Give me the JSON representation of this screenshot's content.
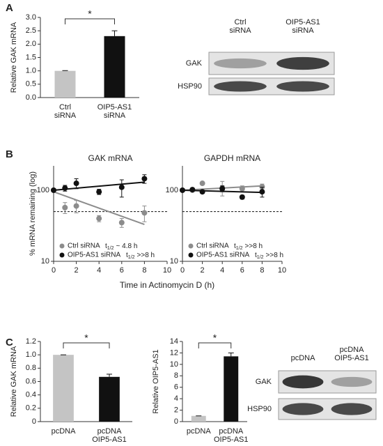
{
  "panels": [
    "A",
    "B",
    "C"
  ],
  "blots": [
    {
      "columns": [
        [
          "Ctrl",
          "siRNA"
        ],
        [
          "OIP5-AS1",
          "siRNA"
        ]
      ],
      "rows": [
        "GAK",
        "HSP90"
      ]
    },
    {
      "columns": [
        [
          "pcDNA"
        ],
        [
          "pcDNA",
          "OIP5-AS1"
        ]
      ],
      "rows": [
        "GAK",
        "HSP90"
      ]
    }
  ],
  "chart_data": [
    {
      "type": "bar",
      "ylabel": "Relative GAK mRNA",
      "categories": [
        [
          "Ctrl",
          "siRNA"
        ],
        [
          "OIP5-AS1",
          "siRNA"
        ]
      ],
      "values": [
        1.0,
        2.3
      ],
      "errors": [
        0.01,
        0.2
      ],
      "colors": [
        "#c4c4c4",
        "#111111"
      ],
      "ylim": [
        0,
        3
      ],
      "yticks": [
        {
          "value": 0,
          "label": "0.0"
        },
        0.5,
        {
          "value": 1,
          "label": "1.0"
        },
        1.5,
        {
          "value": 2,
          "label": "2.0"
        },
        2.5,
        {
          "value": 3,
          "label": "3.0"
        }
      ],
      "significance": "*"
    },
    {
      "type": "scatter",
      "title": "GAK mRNA",
      "ylabel": "% mRNA remaining (log)",
      "xlabel": "Time in Actinomycin D (h)",
      "log_y": true,
      "xlim": [
        0,
        10
      ],
      "xticks": [
        0,
        2,
        4,
        6,
        8,
        10
      ],
      "ylim": [
        10,
        220
      ],
      "yticks": [
        10,
        100
      ],
      "reference_line": 50,
      "half_life_symbol": "t",
      "half_life_subscript": "1/2",
      "series": [
        {
          "name": "Ctrl siRNA",
          "half_life": "~ 4.8 h",
          "color": "#8c8c8c",
          "x": [
            0,
            1,
            2,
            4,
            6,
            8
          ],
          "values": [
            100,
            57,
            60,
            40,
            35,
            48
          ],
          "errors": [
            0,
            10,
            12,
            4,
            5,
            12
          ],
          "fit": {
            "x": [
              0,
              8
            ],
            "values": [
              95,
              33
            ]
          }
        },
        {
          "name": "OIP5-AS1 siRNA",
          "half_life": ">>8 h",
          "color": "#111111",
          "x": [
            0,
            1,
            2,
            4,
            6,
            8
          ],
          "values": [
            100,
            107,
            125,
            95,
            110,
            145
          ],
          "errors": [
            0,
            10,
            20,
            8,
            30,
            20
          ],
          "fit": {
            "x": [
              0,
              8
            ],
            "values": [
              100,
              130
            ]
          }
        }
      ]
    },
    {
      "type": "scatter",
      "title": "GAPDH mRNA",
      "log_y": true,
      "xlim": [
        0,
        10
      ],
      "xticks": [
        0,
        2,
        4,
        6,
        8,
        10
      ],
      "ylim": [
        10,
        220
      ],
      "yticks": [
        10,
        100
      ],
      "reference_line": 50,
      "half_life_symbol": "t",
      "half_life_subscript": "1/2",
      "series": [
        {
          "name": "Ctrl siRNA",
          "half_life": ">>8 h",
          "color": "#8c8c8c",
          "x": [
            0,
            1,
            2,
            4,
            6,
            8
          ],
          "values": [
            100,
            100,
            125,
            108,
            105,
            112
          ],
          "errors": [
            0,
            5,
            5,
            25,
            10,
            10
          ],
          "fit": {
            "x": [
              0,
              8
            ],
            "values": [
              100,
              115
            ]
          }
        },
        {
          "name": "OIP5-AS1 siRNA",
          "half_life": ">>8 h",
          "color": "#111111",
          "x": [
            0,
            1,
            2,
            4,
            6,
            8
          ],
          "values": [
            100,
            102,
            95,
            105,
            80,
            95
          ],
          "errors": [
            0,
            5,
            5,
            10,
            5,
            15
          ],
          "fit": {
            "x": [
              0,
              8
            ],
            "values": [
              100,
              93
            ]
          }
        }
      ]
    },
    {
      "type": "bar",
      "ylabel": "Relative GAK mRNA",
      "categories": [
        [
          "pcDNA"
        ],
        [
          "pcDNA",
          "OIP5-AS1"
        ]
      ],
      "values": [
        1.0,
        0.67
      ],
      "errors": [
        0.0,
        0.04
      ],
      "colors": [
        "#c4c4c4",
        "#111111"
      ],
      "ylim": [
        0,
        1.2
      ],
      "yticks": [
        0,
        0.2,
        0.4,
        0.6,
        0.8,
        {
          "value": 1,
          "label": "1.0"
        },
        1.2
      ],
      "significance": "*"
    },
    {
      "type": "bar",
      "ylabel": "Relative OIP5-AS1",
      "categories": [
        [
          "pcDNA"
        ],
        [
          "pcDNA",
          "OIP5-AS1"
        ]
      ],
      "values": [
        1.0,
        11.4
      ],
      "errors": [
        0.0,
        0.6
      ],
      "colors": [
        "#c4c4c4",
        "#111111"
      ],
      "ylim": [
        0,
        14
      ],
      "yticks": [
        0,
        2,
        4,
        6,
        8,
        10,
        12,
        14
      ],
      "significance": "*"
    }
  ]
}
